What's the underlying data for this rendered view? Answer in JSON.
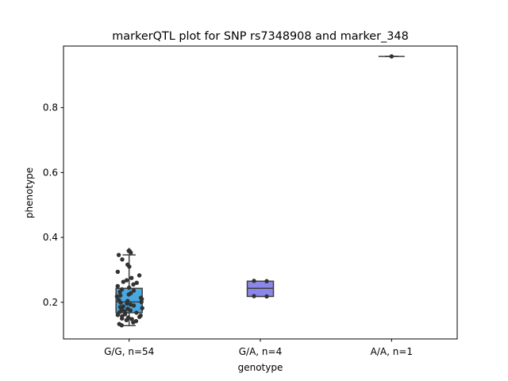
{
  "chart_data": {
    "type": "box",
    "title": "markerQTL plot for SNP rs7348908 and marker_348",
    "xlabel": "genotype",
    "ylabel": "phenotype",
    "categories": [
      "G/G, n=54",
      "G/A, n=4",
      "A/A, n=1"
    ],
    "ylim": [
      0.087,
      0.99
    ],
    "yticks": [
      0.2,
      0.4,
      0.6,
      0.8
    ],
    "ytick_labels": [
      "0.2",
      "0.4",
      "0.6",
      "0.8"
    ],
    "grid": false,
    "boxes": [
      {
        "category": "G/G, n=54",
        "color": "#4aa8e0",
        "q1": 0.168,
        "median": 0.201,
        "q3": 0.243,
        "whisker_low": 0.128,
        "whisker_high": 0.346,
        "outliers": [
          0.36
        ]
      },
      {
        "category": "G/A, n=4",
        "color": "#8a86ea",
        "q1": 0.218,
        "median": 0.243,
        "q3": 0.265,
        "whisker_low": 0.218,
        "whisker_high": 0.265,
        "outliers": []
      },
      {
        "category": "A/A, n=1",
        "color": "#e07be0",
        "q1": 0.958,
        "median": 0.958,
        "q3": 0.958,
        "whisker_low": 0.958,
        "whisker_high": 0.958,
        "outliers": []
      }
    ],
    "points": [
      {
        "category": "G/G, n=54",
        "values": [
          0.358,
          0.353,
          0.346,
          0.332,
          0.316,
          0.31,
          0.294,
          0.283,
          0.275,
          0.268,
          0.263,
          0.26,
          0.255,
          0.25,
          0.245,
          0.24,
          0.236,
          0.232,
          0.228,
          0.224,
          0.221,
          0.218,
          0.214,
          0.21,
          0.207,
          0.204,
          0.201,
          0.199,
          0.196,
          0.193,
          0.19,
          0.187,
          0.185,
          0.182,
          0.18,
          0.177,
          0.175,
          0.172,
          0.17,
          0.168,
          0.166,
          0.163,
          0.161,
          0.159,
          0.157,
          0.155,
          0.153,
          0.15,
          0.148,
          0.145,
          0.142,
          0.138,
          0.133,
          0.129
        ]
      },
      {
        "category": "G/A, n=4",
        "values": [
          0.266,
          0.265,
          0.219,
          0.218
        ]
      },
      {
        "category": "A/A, n=1",
        "values": [
          0.958
        ]
      }
    ],
    "point_color": "#333333"
  }
}
